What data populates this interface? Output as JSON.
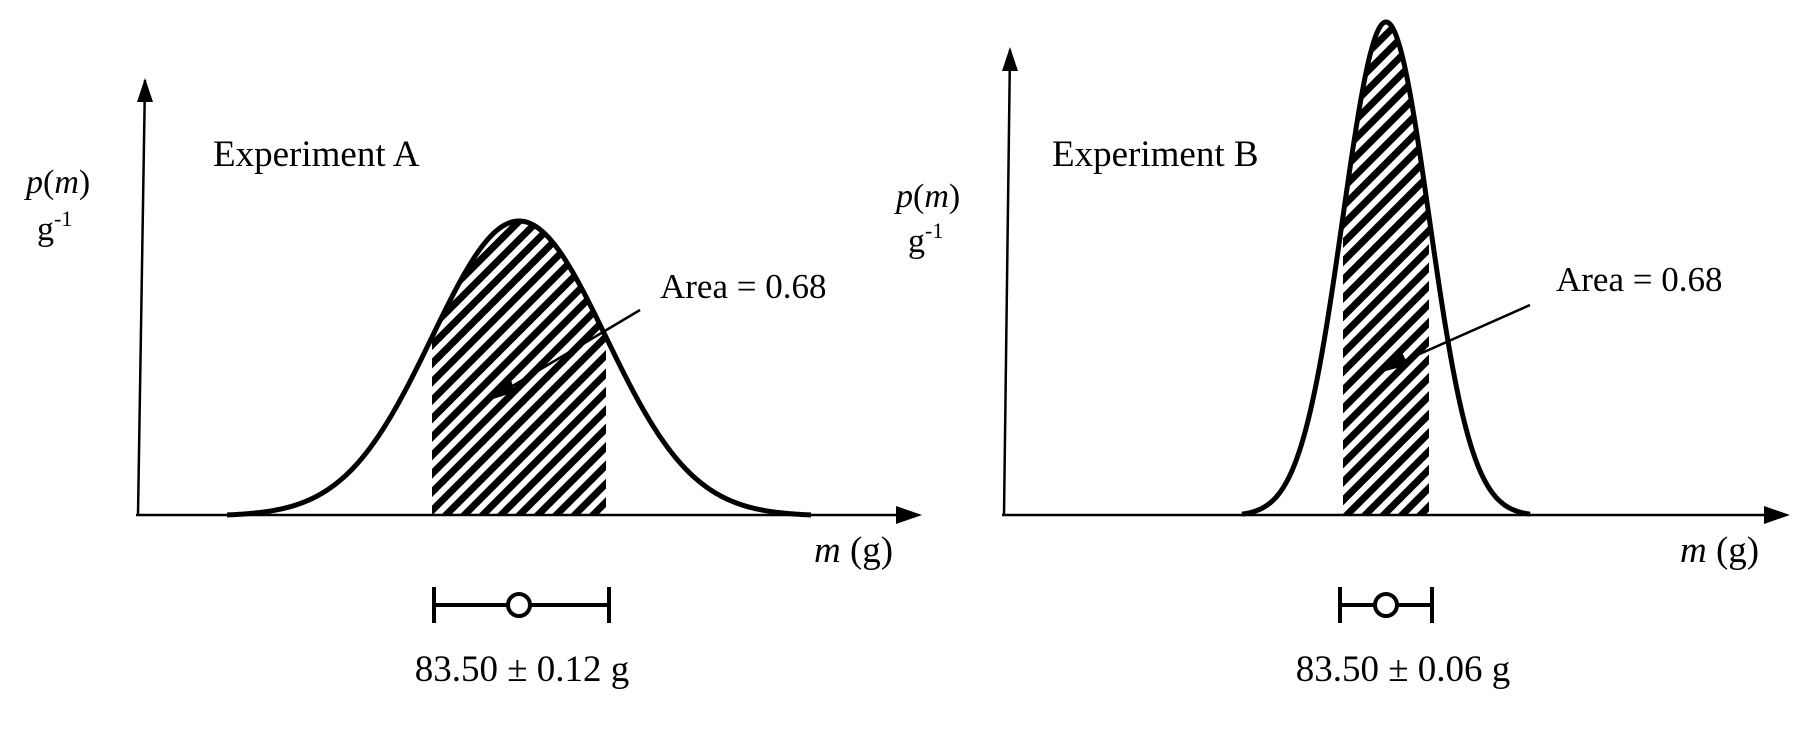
{
  "panels": [
    {
      "title": "Experiment A",
      "ylabel_main": "p",
      "ylabel_var": "m",
      "yunit_base": "g",
      "yunit_exp": "-1",
      "xlabel_var": "m",
      "xlabel_unit": " (g)",
      "annotation": "Area = 0.68",
      "result": "83.50 ± 0.12 g",
      "mean": 83.5,
      "uncertainty": 0.12,
      "shaded_area": 0.68
    },
    {
      "title": "Experiment B",
      "ylabel_main": "p",
      "ylabel_var": "m",
      "yunit_base": "g",
      "yunit_exp": "-1",
      "xlabel_var": "m",
      "xlabel_unit": " (g)",
      "annotation": "Area = 0.68",
      "result": "83.50 ± 0.06 g",
      "mean": 83.5,
      "uncertainty": 0.06,
      "shaded_area": 0.68
    }
  ],
  "colors": {
    "ink": "#000000",
    "background": "#ffffff"
  }
}
